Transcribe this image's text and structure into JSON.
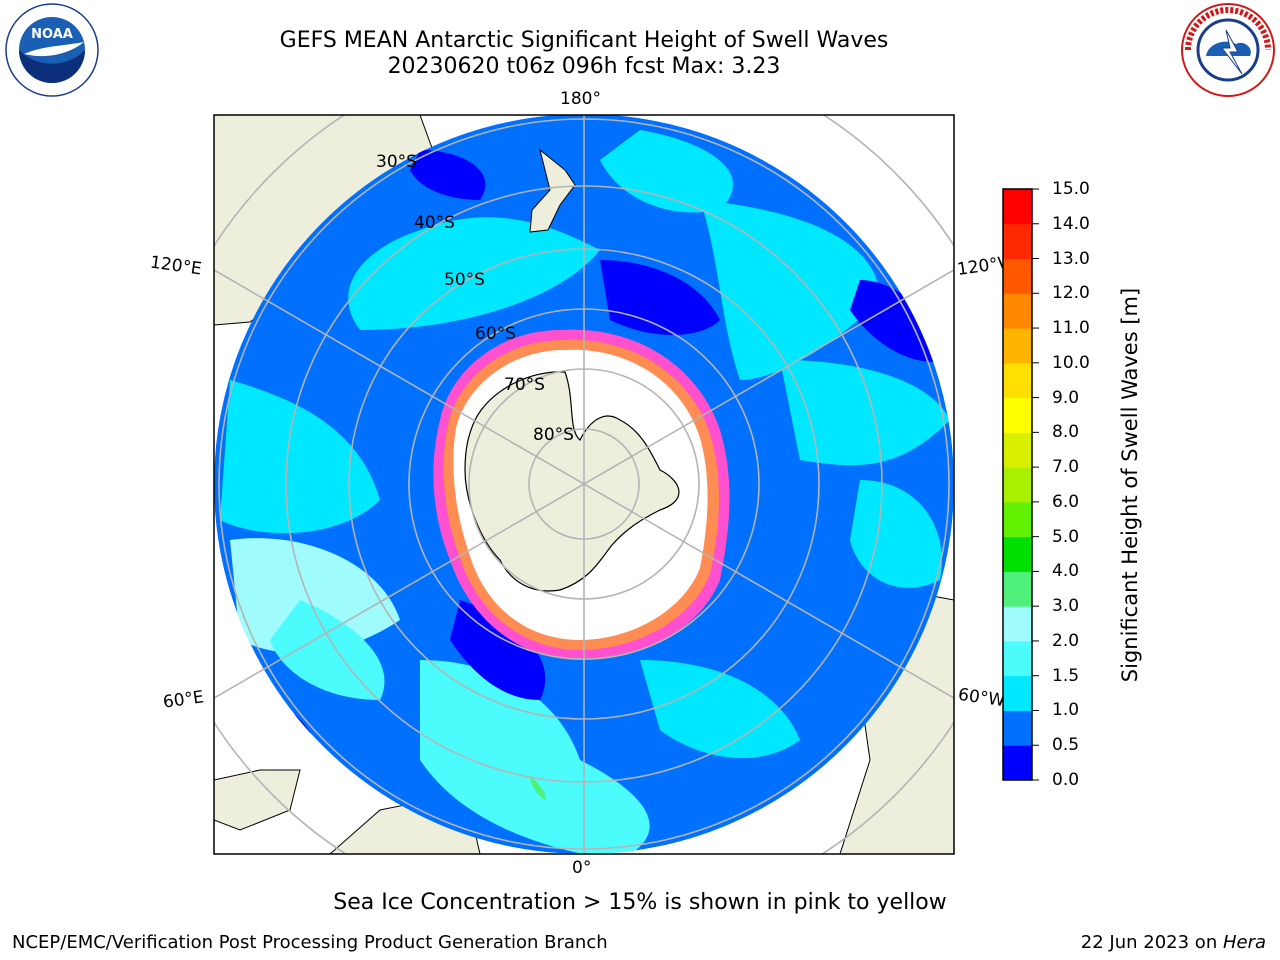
{
  "header": {
    "title_line1": "GEFS MEAN Antarctic Significant Height of Swell Waves",
    "title_line2": "20230620 t06z 096h fcst   Max: 3.23"
  },
  "logos": {
    "left": {
      "icon": "noaa-logo-icon",
      "text": "NOAA"
    },
    "right": {
      "icon": "national-weather-service-logo-icon"
    }
  },
  "map": {
    "projection": "south-polar-stereographic",
    "lon_labels": {
      "top": "180°",
      "bottom": "0°",
      "upper_left": "120°E",
      "upper_right": "120°W",
      "lower_left": "60°E",
      "lower_right": "60°W"
    },
    "lat_labels": [
      "30°S",
      "40°S",
      "50°S",
      "60°S",
      "70°S",
      "80°S"
    ],
    "colors": {
      "land": "#eeeedc",
      "coast": "#000000",
      "grid": "#b4b4b4",
      "ice_free": "#ffffff"
    }
  },
  "colorbar": {
    "label": "Significant Height of Swell Waves [m]",
    "ticks": [
      "0.0",
      "0.5",
      "1.0",
      "1.5",
      "2.0",
      "3.0",
      "4.0",
      "5.0",
      "6.0",
      "7.0",
      "8.0",
      "9.0",
      "10.0",
      "11.0",
      "12.0",
      "13.0",
      "14.0",
      "15.0"
    ],
    "colors": [
      "#0000ff",
      "#0070ff",
      "#00e8ff",
      "#4cfcfc",
      "#a0fcfc",
      "#4ef07a",
      "#00e000",
      "#60f000",
      "#a8f000",
      "#d8f000",
      "#ffff00",
      "#ffe000",
      "#ffb400",
      "#ff8800",
      "#ff5800",
      "#ff2800",
      "#ff0000"
    ]
  },
  "caption": "Sea Ice Concentration > 15% is shown in pink to yellow",
  "footer": {
    "left": "NCEP/EMC/Verification Post Processing Product Generation Branch",
    "right_prefix": "22 Jun 2023 on ",
    "right_host": "Hera"
  }
}
